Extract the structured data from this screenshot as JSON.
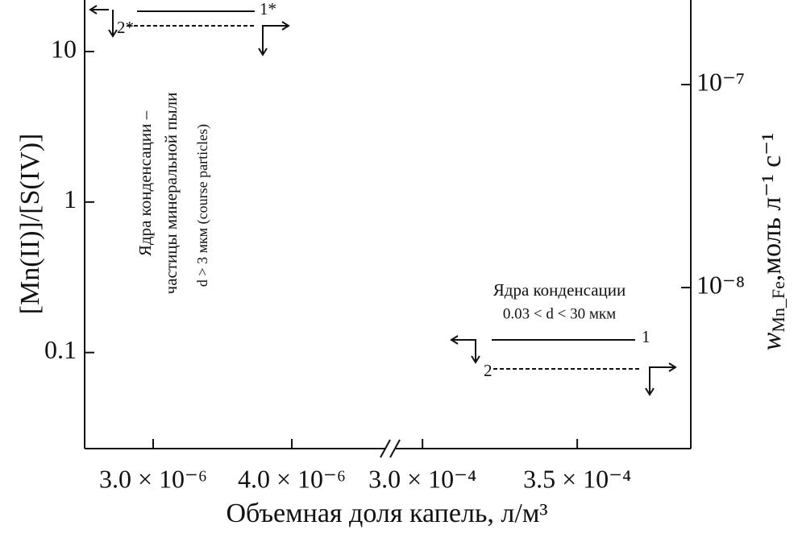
{
  "chart_data": {
    "type": "line",
    "x_label": "Объемная доля капель, л/м³",
    "y_label": "[Mn(II)]/[S(IV)]",
    "y2_label": {
      "symbol": "w",
      "subscript": "Mn_Fe",
      "unit": ",моль л⁻¹ с⁻¹"
    },
    "yscale": "log",
    "ylim": [
      0.023,
      22
    ],
    "yticks": [
      0.1,
      1,
      10
    ],
    "y2scale": "log",
    "y2lim": [
      1.61e-09,
      2.61e-07
    ],
    "y2ticks": [
      {
        "value": 1e-07,
        "label": "10⁻⁷"
      },
      {
        "value": 1e-08,
        "label": "10⁻⁸"
      }
    ],
    "x_segments": [
      {
        "xlim": [
          2.506e-06,
          4.674e-06
        ],
        "xticks": [
          {
            "value": 3e-06,
            "label": "3.0 × 10⁻⁶"
          },
          {
            "value": 4e-06,
            "label": "4.0 × 10⁻⁶"
          }
        ]
      },
      {
        "xlim": [
          0.0002911,
          0.0003867
        ],
        "xticks": [
          {
            "value": 0.0003,
            "label": "3.0 × 10⁻⁴"
          },
          {
            "value": 0.00035,
            "label": "3.5 × 10⁻⁴"
          }
        ]
      }
    ],
    "annotations": [
      {
        "lines": [
          "Ядра конденсации –",
          "частицы минеральной пыли",
          "d > 3 мкм (course particles)"
        ]
      },
      {
        "lines": [
          "Ядра конденсации",
          "0.03 < d < 30 мкм"
        ]
      }
    ],
    "legends": [
      {
        "entries": [
          {
            "label": "1*",
            "style": "solid"
          },
          {
            "label": "2*",
            "style": "dashed"
          }
        ]
      },
      {
        "entries": [
          {
            "label": "1",
            "style": "solid"
          },
          {
            "label": "2",
            "style": "dashed"
          }
        ]
      }
    ]
  }
}
